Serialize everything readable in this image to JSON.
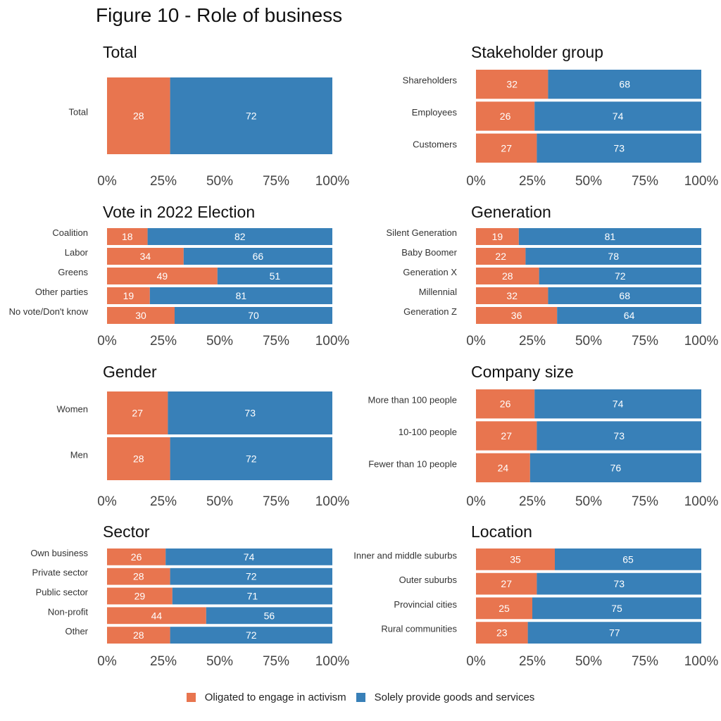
{
  "title": "Figure 10 - Role of business",
  "legend": [
    {
      "label": "Oligated to engage in activism",
      "color": "#E8754F"
    },
    {
      "label": "Solely provide goods and services",
      "color": "#3880B8"
    }
  ],
  "chart_data": [
    {
      "type": "bar",
      "orientation": "horizontal",
      "stacked": true,
      "title": "Total",
      "categories": [
        "Total"
      ],
      "series": [
        {
          "name": "Oligated to engage in activism",
          "values": [
            28
          ]
        },
        {
          "name": "Solely provide goods and services",
          "values": [
            72
          ]
        }
      ],
      "xlim": [
        0,
        100
      ],
      "xticks": [
        "0%",
        "25%",
        "50%",
        "75%",
        "100%"
      ]
    },
    {
      "type": "bar",
      "orientation": "horizontal",
      "stacked": true,
      "title": "Stakeholder group",
      "categories": [
        "Shareholders",
        "Employees",
        "Customers"
      ],
      "series": [
        {
          "name": "Oligated to engage in activism",
          "values": [
            32,
            26,
            27
          ]
        },
        {
          "name": "Solely provide goods and services",
          "values": [
            68,
            74,
            73
          ]
        }
      ],
      "xlim": [
        0,
        100
      ],
      "xticks": [
        "0%",
        "25%",
        "50%",
        "75%",
        "100%"
      ]
    },
    {
      "type": "bar",
      "orientation": "horizontal",
      "stacked": true,
      "title": "Vote in 2022 Election",
      "categories": [
        "Coalition",
        "Labor",
        "Greens",
        "Other parties",
        "No vote/Don't know"
      ],
      "series": [
        {
          "name": "Oligated to engage in activism",
          "values": [
            18,
            34,
            49,
            19,
            30
          ]
        },
        {
          "name": "Solely provide goods and services",
          "values": [
            82,
            66,
            51,
            81,
            70
          ]
        }
      ],
      "xlim": [
        0,
        100
      ],
      "xticks": [
        "0%",
        "25%",
        "50%",
        "75%",
        "100%"
      ]
    },
    {
      "type": "bar",
      "orientation": "horizontal",
      "stacked": true,
      "title": "Generation",
      "categories": [
        "Silent Generation",
        "Baby Boomer",
        "Generation X",
        "Millennial",
        "Generation Z"
      ],
      "series": [
        {
          "name": "Oligated to engage in activism",
          "values": [
            19,
            22,
            28,
            32,
            36
          ]
        },
        {
          "name": "Solely provide goods and services",
          "values": [
            81,
            78,
            72,
            68,
            64
          ]
        }
      ],
      "xlim": [
        0,
        100
      ],
      "xticks": [
        "0%",
        "25%",
        "50%",
        "75%",
        "100%"
      ]
    },
    {
      "type": "bar",
      "orientation": "horizontal",
      "stacked": true,
      "title": "Gender",
      "categories": [
        "Women",
        "Men"
      ],
      "series": [
        {
          "name": "Oligated to engage in activism",
          "values": [
            27,
            28
          ]
        },
        {
          "name": "Solely provide goods and services",
          "values": [
            73,
            72
          ]
        }
      ],
      "xlim": [
        0,
        100
      ],
      "xticks": [
        "0%",
        "25%",
        "50%",
        "75%",
        "100%"
      ]
    },
    {
      "type": "bar",
      "orientation": "horizontal",
      "stacked": true,
      "title": "Company size",
      "categories": [
        "More than 100 people",
        "10-100 people",
        "Fewer than 10 people"
      ],
      "series": [
        {
          "name": "Oligated to engage in activism",
          "values": [
            26,
            27,
            24
          ]
        },
        {
          "name": "Solely provide goods and services",
          "values": [
            74,
            73,
            76
          ]
        }
      ],
      "xlim": [
        0,
        100
      ],
      "xticks": [
        "0%",
        "25%",
        "50%",
        "75%",
        "100%"
      ]
    },
    {
      "type": "bar",
      "orientation": "horizontal",
      "stacked": true,
      "title": "Sector",
      "categories": [
        "Own business",
        "Private sector",
        "Public sector",
        "Non-profit",
        "Other"
      ],
      "series": [
        {
          "name": "Oligated to engage in activism",
          "values": [
            26,
            28,
            29,
            44,
            28
          ]
        },
        {
          "name": "Solely provide goods and services",
          "values": [
            74,
            72,
            71,
            56,
            72
          ]
        }
      ],
      "xlim": [
        0,
        100
      ],
      "xticks": [
        "0%",
        "25%",
        "50%",
        "75%",
        "100%"
      ]
    },
    {
      "type": "bar",
      "orientation": "horizontal",
      "stacked": true,
      "title": "Location",
      "categories": [
        "Inner and middle suburbs",
        "Outer suburbs",
        "Provincial cities",
        "Rural communities"
      ],
      "series": [
        {
          "name": "Oligated to engage in activism",
          "values": [
            35,
            27,
            25,
            23
          ]
        },
        {
          "name": "Solely provide goods and services",
          "values": [
            65,
            73,
            75,
            77
          ]
        }
      ],
      "xlim": [
        0,
        100
      ],
      "xticks": [
        "0%",
        "25%",
        "50%",
        "75%",
        "100%"
      ]
    }
  ]
}
